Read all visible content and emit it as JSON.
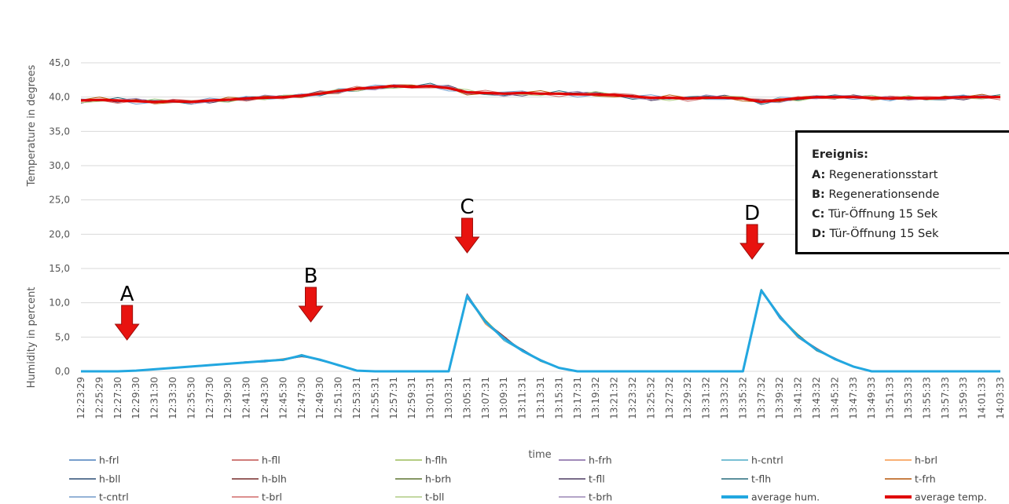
{
  "chart_data": {
    "type": "line",
    "xlabel": "time",
    "ylabel_top": "Temperature in degrees",
    "ylabel_bottom": "Humidity in percent",
    "ylim": [
      0,
      45
    ],
    "yticks": [
      "0,0",
      "5,0",
      "10,0",
      "15,0",
      "20,0",
      "25,0",
      "30,0",
      "35,0",
      "40,0",
      "45,0"
    ],
    "xticks": [
      "12:23:29",
      "12:25:29",
      "12:27:30",
      "12:29:30",
      "12:31:30",
      "12:33:30",
      "12:35:30",
      "12:37:30",
      "12:39:30",
      "12:41:30",
      "12:43:30",
      "12:45:30",
      "12:47:30",
      "12:49:30",
      "12:51:30",
      "12:53:31",
      "12:55:31",
      "12:57:31",
      "12:59:31",
      "13:01:31",
      "13:03:31",
      "13:05:31",
      "13:07:31",
      "13:09:31",
      "13:11:31",
      "13:13:31",
      "13:15:31",
      "13:17:31",
      "13:19:32",
      "13:21:32",
      "13:23:32",
      "13:25:32",
      "13:27:32",
      "13:29:32",
      "13:31:32",
      "13:33:32",
      "13:35:32",
      "13:37:32",
      "13:39:32",
      "13:41:32",
      "13:43:32",
      "13:45:32",
      "13:47:33",
      "13:49:33",
      "13:51:33",
      "13:53:33",
      "13:55:33",
      "13:57:33",
      "13:59:33",
      "14:01:33",
      "14:03:33"
    ],
    "series": [
      {
        "name": "average temp.",
        "color": "#e00000",
        "values": [
          39.5,
          39.6,
          39.5,
          39.4,
          39.3,
          39.4,
          39.3,
          39.5,
          39.6,
          39.8,
          39.9,
          40.0,
          40.2,
          40.5,
          40.9,
          41.2,
          41.4,
          41.6,
          41.5,
          41.6,
          41.3,
          40.7,
          40.6,
          40.5,
          40.6,
          40.5,
          40.5,
          40.4,
          40.4,
          40.3,
          40.1,
          39.9,
          39.9,
          39.8,
          39.9,
          39.9,
          39.8,
          39.3,
          39.6,
          39.8,
          40.0,
          40.0,
          40.0,
          39.9,
          39.8,
          39.9,
          39.8,
          39.9,
          40.0,
          40.0,
          40.0
        ]
      },
      {
        "name": "average hum.",
        "color": "#22a7e0",
        "values": [
          0,
          0,
          0,
          0.1,
          0.3,
          0.5,
          0.7,
          0.9,
          1.1,
          1.3,
          1.5,
          1.7,
          2.3,
          1.7,
          0.9,
          0.1,
          0,
          0,
          0,
          0,
          0,
          11.0,
          7.2,
          4.8,
          3.0,
          1.6,
          0.5,
          0,
          0,
          0,
          0,
          0,
          0,
          0,
          0,
          0,
          0,
          11.8,
          8.0,
          5.1,
          3.2,
          1.8,
          0.7,
          0,
          0,
          0,
          0,
          0,
          0,
          0,
          0
        ]
      },
      {
        "name": "h-frl",
        "color": "#4a7ebb"
      },
      {
        "name": "h-fll",
        "color": "#c0504d"
      },
      {
        "name": "h-flh",
        "color": "#9bbb59"
      },
      {
        "name": "h-frh",
        "color": "#8064a2"
      },
      {
        "name": "h-cntrl",
        "color": "#4bacc6"
      },
      {
        "name": "h-brl",
        "color": "#f79646"
      },
      {
        "name": "h-bll",
        "color": "#2c4d75"
      },
      {
        "name": "h-blh",
        "color": "#772c2a"
      },
      {
        "name": "h-brh",
        "color": "#5f7530"
      },
      {
        "name": "t-fll",
        "color": "#4d3b62"
      },
      {
        "name": "t-flh",
        "color": "#276a7c"
      },
      {
        "name": "t-frh",
        "color": "#b65708"
      },
      {
        "name": "t-cntrl",
        "color": "#729aca"
      },
      {
        "name": "t-brl",
        "color": "#d06c6a"
      },
      {
        "name": "t-bll",
        "color": "#b0cc84"
      },
      {
        "name": "t-brh",
        "color": "#9c87b6"
      }
    ],
    "markers": [
      {
        "label": "A",
        "time": "12:28:30"
      },
      {
        "label": "B",
        "time": "12:48:30"
      },
      {
        "label": "C",
        "time": "13:05:31"
      },
      {
        "label": "D",
        "time": "13:36:32"
      }
    ],
    "legend_position": "bottom",
    "grid": true,
    "events": {
      "title": "Ereignis:",
      "items": [
        {
          "key": "A:",
          "text": "Regenerationsstart"
        },
        {
          "key": "B:",
          "text": "Regenerationsende"
        },
        {
          "key": "C:",
          "text": "Tür-Öffnung 15 Sek"
        },
        {
          "key": "D:",
          "text": "Tür-Öffnung 15 Sek"
        }
      ]
    }
  }
}
